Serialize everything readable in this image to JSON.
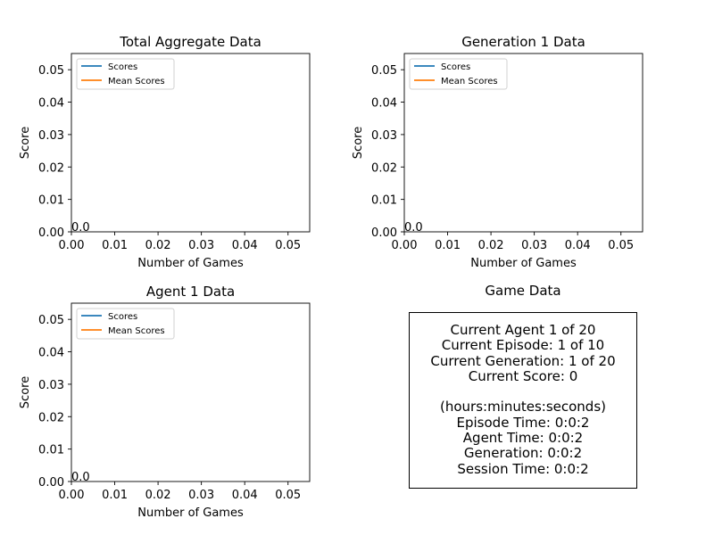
{
  "colors": {
    "scores": "#1f77b4",
    "mean_scores": "#ff7f0e"
  },
  "chart_data": [
    {
      "type": "line",
      "title": "Total Aggregate Data",
      "xlabel": "Number of Games",
      "ylabel": "Score",
      "xlim": [
        0,
        0.055
      ],
      "ylim": [
        0,
        0.055
      ],
      "x_ticks": [
        "0.00",
        "0.01",
        "0.02",
        "0.03",
        "0.04",
        "0.05"
      ],
      "y_ticks": [
        "0.00",
        "0.01",
        "0.02",
        "0.03",
        "0.04",
        "0.05"
      ],
      "series": [
        {
          "name": "Scores",
          "x": [
            0
          ],
          "y": [
            0
          ]
        },
        {
          "name": "Mean Scores",
          "x": [
            0
          ],
          "y": [
            0
          ]
        }
      ],
      "annotations": [
        {
          "text": "0.0",
          "x": 0,
          "y": 0
        }
      ],
      "legend": "upper left",
      "grid": false
    },
    {
      "type": "line",
      "title": "Generation 1 Data",
      "xlabel": "Number of Games",
      "ylabel": "Score",
      "xlim": [
        0,
        0.055
      ],
      "ylim": [
        0,
        0.055
      ],
      "x_ticks": [
        "0.00",
        "0.01",
        "0.02",
        "0.03",
        "0.04",
        "0.05"
      ],
      "y_ticks": [
        "0.00",
        "0.01",
        "0.02",
        "0.03",
        "0.04",
        "0.05"
      ],
      "series": [
        {
          "name": "Scores",
          "x": [
            0
          ],
          "y": [
            0
          ]
        },
        {
          "name": "Mean Scores",
          "x": [
            0
          ],
          "y": [
            0
          ]
        }
      ],
      "annotations": [
        {
          "text": "0.0",
          "x": 0,
          "y": 0
        }
      ],
      "legend": "upper left",
      "grid": false
    },
    {
      "type": "line",
      "title": "Agent 1 Data",
      "xlabel": "Number of Games",
      "ylabel": "Score",
      "xlim": [
        0,
        0.055
      ],
      "ylim": [
        0,
        0.055
      ],
      "x_ticks": [
        "0.00",
        "0.01",
        "0.02",
        "0.03",
        "0.04",
        "0.05"
      ],
      "y_ticks": [
        "0.00",
        "0.01",
        "0.02",
        "0.03",
        "0.04",
        "0.05"
      ],
      "series": [
        {
          "name": "Scores",
          "x": [
            0
          ],
          "y": [
            0
          ]
        },
        {
          "name": "Mean Scores",
          "x": [
            0
          ],
          "y": [
            0
          ]
        }
      ],
      "annotations": [
        {
          "text": "0.0",
          "x": 0,
          "y": 0
        }
      ],
      "legend": "upper left",
      "grid": false
    }
  ],
  "game_data": {
    "title": "Game Data",
    "lines": [
      "Current Agent 1 of 20",
      "Current Episode: 1 of 10",
      "Current Generation: 1 of 20",
      "Current Score: 0",
      "",
      "(hours:minutes:seconds)",
      "Episode Time: 0:0:2",
      "Agent Time: 0:0:2",
      "Generation: 0:0:2",
      "Session Time: 0:0:2"
    ]
  }
}
